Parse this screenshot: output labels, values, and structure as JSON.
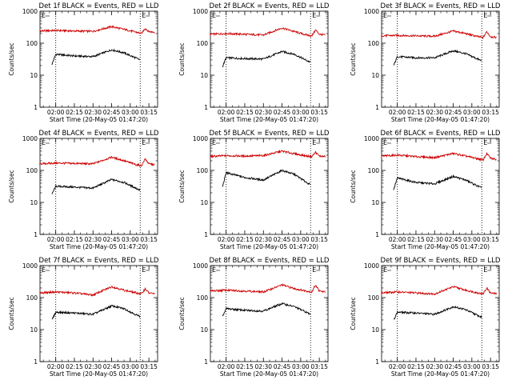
{
  "figure": {
    "background": "#ffffff",
    "axis_color": "#000000",
    "events_color": "#000000",
    "lld_color": "#cc0000"
  },
  "chart_data": [
    {
      "type": "line",
      "title": "Det 1f BLACK = Events, RED = LLD",
      "ylabel": "Counts/sec",
      "xlabel": "Start Time (20-May-05 01:47:20)",
      "yscale": "log",
      "ylim": [
        1,
        1000
      ],
      "yticks": [
        "1",
        "10",
        "100",
        "1000"
      ],
      "xlim": [
        "01:47:20",
        "03:22:00"
      ],
      "xticks": [
        "02:00",
        "02:15",
        "02:30",
        "02:45",
        "03:00",
        "03:15"
      ],
      "vlines": [
        "02:00",
        "03:08"
      ],
      "vline_style": "dotted",
      "marker_labels": [
        "E",
        "E"
      ],
      "series": [
        {
          "name": "Events",
          "color": "#000000",
          "x": [
            "01:57",
            "02:00",
            "02:15",
            "02:30",
            "02:45",
            "02:55",
            "03:08"
          ],
          "y": [
            22,
            45,
            40,
            38,
            62,
            50,
            30
          ]
        },
        {
          "name": "LLD",
          "color": "#cc0000",
          "x": [
            "01:47",
            "02:00",
            "02:15",
            "02:30",
            "02:45",
            "02:55",
            "03:05",
            "03:09",
            "03:12",
            "03:15",
            "03:20"
          ],
          "y": [
            240,
            250,
            240,
            235,
            330,
            270,
            220,
            200,
            290,
            230,
            220
          ]
        }
      ]
    },
    {
      "type": "line",
      "title": "Det 2f BLACK = Events, RED = LLD",
      "ylabel": "Counts/sec",
      "xlabel": "Start Time (20-May-05 01:47:20)",
      "yscale": "log",
      "ylim": [
        1,
        1000
      ],
      "yticks": [
        "1",
        "10",
        "100",
        "1000"
      ],
      "xlim": [
        "01:47:20",
        "03:22:00"
      ],
      "xticks": [
        "02:00",
        "02:15",
        "02:30",
        "02:45",
        "03:00",
        "03:15"
      ],
      "vlines": [
        "02:00",
        "03:08"
      ],
      "vline_style": "dotted",
      "marker_labels": [
        "E",
        "E"
      ],
      "series": [
        {
          "name": "Events",
          "color": "#000000",
          "x": [
            "01:57",
            "02:00",
            "02:15",
            "02:30",
            "02:45",
            "02:55",
            "03:08"
          ],
          "y": [
            18,
            35,
            33,
            32,
            55,
            45,
            25
          ]
        },
        {
          "name": "LLD",
          "color": "#cc0000",
          "x": [
            "01:47",
            "02:00",
            "02:15",
            "02:30",
            "02:45",
            "02:55",
            "03:05",
            "03:09",
            "03:12",
            "03:15",
            "03:20"
          ],
          "y": [
            190,
            200,
            190,
            180,
            300,
            230,
            180,
            170,
            260,
            190,
            180
          ]
        }
      ]
    },
    {
      "type": "line",
      "title": "Det 3f BLACK = Events, RED = LLD",
      "ylabel": "Counts/sec",
      "xlabel": "Start Time (20-May-05 01:47:20)",
      "yscale": "log",
      "ylim": [
        1,
        1000
      ],
      "yticks": [
        "1",
        "10",
        "100",
        "1000"
      ],
      "xlim": [
        "01:47:20",
        "03:22:00"
      ],
      "xticks": [
        "02:00",
        "02:15",
        "02:30",
        "02:45",
        "03:00",
        "03:15"
      ],
      "vlines": [
        "02:00",
        "03:08"
      ],
      "vline_style": "dotted",
      "marker_labels": [
        "E",
        "E"
      ],
      "series": [
        {
          "name": "Events",
          "color": "#000000",
          "x": [
            "01:57",
            "02:00",
            "02:15",
            "02:30",
            "02:45",
            "02:55",
            "03:08"
          ],
          "y": [
            20,
            38,
            35,
            35,
            58,
            47,
            28
          ]
        },
        {
          "name": "LLD",
          "color": "#cc0000",
          "x": [
            "01:47",
            "02:00",
            "02:15",
            "02:30",
            "02:45",
            "02:55",
            "03:05",
            "03:09",
            "03:12",
            "03:15",
            "03:20"
          ],
          "y": [
            170,
            175,
            170,
            165,
            240,
            200,
            160,
            150,
            230,
            160,
            150
          ]
        }
      ]
    },
    {
      "type": "line",
      "title": "Det 4f BLACK = Events, RED = LLD",
      "ylabel": "Counts/sec",
      "xlabel": "Start Time (20-May-05 01:47:20)",
      "yscale": "log",
      "ylim": [
        1,
        1000
      ],
      "yticks": [
        "1",
        "10",
        "100",
        "1000"
      ],
      "xlim": [
        "01:47:20",
        "03:22:00"
      ],
      "xticks": [
        "02:00",
        "02:15",
        "02:30",
        "02:45",
        "03:00",
        "03:15"
      ],
      "vlines": [
        "02:00",
        "03:08"
      ],
      "vline_style": "dotted",
      "marker_labels": [
        "E",
        "E"
      ],
      "series": [
        {
          "name": "Events",
          "color": "#000000",
          "x": [
            "01:57",
            "02:00",
            "02:15",
            "02:30",
            "02:45",
            "02:55",
            "03:08"
          ],
          "y": [
            18,
            32,
            30,
            28,
            52,
            42,
            24
          ]
        },
        {
          "name": "LLD",
          "color": "#cc0000",
          "x": [
            "01:47",
            "02:00",
            "02:15",
            "02:30",
            "02:45",
            "02:55",
            "03:05",
            "03:09",
            "03:12",
            "03:15",
            "03:20"
          ],
          "y": [
            160,
            170,
            165,
            160,
            260,
            200,
            150,
            140,
            230,
            160,
            150
          ]
        }
      ]
    },
    {
      "type": "line",
      "title": "Det 5f BLACK = Events, RED = LLD",
      "ylabel": "Counts/sec",
      "xlabel": "Start Time (20-May-05 01:47:20)",
      "yscale": "log",
      "ylim": [
        1,
        1000
      ],
      "yticks": [
        "1",
        "10",
        "100",
        "1000"
      ],
      "xlim": [
        "01:47:20",
        "03:22:00"
      ],
      "xticks": [
        "02:00",
        "02:15",
        "02:30",
        "02:45",
        "03:00",
        "03:15"
      ],
      "vlines": [
        "02:00",
        "03:08"
      ],
      "vline_style": "dotted",
      "marker_labels": [
        "E",
        "E"
      ],
      "series": [
        {
          "name": "Events",
          "color": "#000000",
          "x": [
            "01:57",
            "02:00",
            "02:15",
            "02:30",
            "02:45",
            "02:55",
            "03:08"
          ],
          "y": [
            30,
            85,
            60,
            50,
            100,
            75,
            35
          ]
        },
        {
          "name": "LLD",
          "color": "#cc0000",
          "x": [
            "01:47",
            "02:00",
            "02:15",
            "02:30",
            "02:45",
            "02:55",
            "03:05",
            "03:09",
            "03:12",
            "03:15",
            "03:20"
          ],
          "y": [
            270,
            290,
            280,
            290,
            400,
            330,
            280,
            270,
            370,
            280,
            270
          ]
        }
      ]
    },
    {
      "type": "line",
      "title": "Det 6f BLACK = Events, RED = LLD",
      "ylabel": "Counts/sec",
      "xlabel": "Start Time (20-May-05 01:47:20)",
      "yscale": "log",
      "ylim": [
        1,
        1000
      ],
      "yticks": [
        "1",
        "10",
        "100",
        "1000"
      ],
      "xlim": [
        "01:47:20",
        "03:22:00"
      ],
      "xticks": [
        "02:00",
        "02:15",
        "02:30",
        "02:45",
        "03:00",
        "03:15"
      ],
      "vlines": [
        "02:00",
        "03:08"
      ],
      "vline_style": "dotted",
      "marker_labels": [
        "E",
        "E"
      ],
      "series": [
        {
          "name": "Events",
          "color": "#000000",
          "x": [
            "01:57",
            "02:00",
            "02:15",
            "02:30",
            "02:45",
            "02:55",
            "03:08"
          ],
          "y": [
            25,
            58,
            42,
            38,
            65,
            50,
            28
          ]
        },
        {
          "name": "LLD",
          "color": "#cc0000",
          "x": [
            "01:47",
            "02:00",
            "02:15",
            "02:30",
            "02:45",
            "02:55",
            "03:05",
            "03:09",
            "03:12",
            "03:15",
            "03:20"
          ],
          "y": [
            280,
            300,
            270,
            250,
            340,
            280,
            230,
            210,
            340,
            240,
            220
          ]
        }
      ]
    },
    {
      "type": "line",
      "title": "Det 7f BLACK = Events, RED = LLD",
      "ylabel": "Counts/sec",
      "xlabel": "Start Time (20-May-05 01:47:20)",
      "yscale": "log",
      "ylim": [
        1,
        1000
      ],
      "yticks": [
        "1",
        "10",
        "100",
        "1000"
      ],
      "xlim": [
        "01:47:20",
        "03:22:00"
      ],
      "xticks": [
        "02:00",
        "02:15",
        "02:30",
        "02:45",
        "03:00",
        "03:15"
      ],
      "vlines": [
        "02:00",
        "03:08"
      ],
      "vline_style": "dotted",
      "marker_labels": [
        "E",
        "E"
      ],
      "series": [
        {
          "name": "Events",
          "color": "#000000",
          "x": [
            "01:57",
            "02:00",
            "02:15",
            "02:30",
            "02:45",
            "02:55",
            "03:08"
          ],
          "y": [
            20,
            35,
            33,
            30,
            55,
            45,
            25
          ]
        },
        {
          "name": "LLD",
          "color": "#cc0000",
          "x": [
            "01:47",
            "02:00",
            "02:15",
            "02:30",
            "02:45",
            "02:55",
            "03:05",
            "03:09",
            "03:12",
            "03:15",
            "03:20"
          ],
          "y": [
            140,
            150,
            140,
            120,
            220,
            170,
            140,
            130,
            190,
            140,
            130
          ]
        }
      ]
    },
    {
      "type": "line",
      "title": "Det 8f BLACK = Events, RED = LLD",
      "ylabel": "Counts/sec",
      "xlabel": "Start Time (20-May-05 01:47:20)",
      "yscale": "log",
      "ylim": [
        1,
        1000
      ],
      "yticks": [
        "1",
        "10",
        "100",
        "1000"
      ],
      "xlim": [
        "01:47:20",
        "03:22:00"
      ],
      "xticks": [
        "02:00",
        "02:15",
        "02:30",
        "02:45",
        "03:00",
        "03:15"
      ],
      "vlines": [
        "02:00",
        "03:08"
      ],
      "vline_style": "dotted",
      "marker_labels": [
        "E",
        "E"
      ],
      "series": [
        {
          "name": "Events",
          "color": "#000000",
          "x": [
            "01:57",
            "02:00",
            "02:15",
            "02:30",
            "02:45",
            "02:55",
            "03:08"
          ],
          "y": [
            25,
            45,
            40,
            38,
            65,
            52,
            30
          ]
        },
        {
          "name": "LLD",
          "color": "#cc0000",
          "x": [
            "01:47",
            "02:00",
            "02:15",
            "02:30",
            "02:45",
            "02:55",
            "03:05",
            "03:09",
            "03:12",
            "03:15",
            "03:20"
          ],
          "y": [
            160,
            170,
            160,
            150,
            250,
            190,
            160,
            150,
            250,
            160,
            150
          ]
        }
      ]
    },
    {
      "type": "line",
      "title": "Det 9f BLACK = Events, RED = LLD",
      "ylabel": "Counts/sec",
      "xlabel": "Start Time (20-May-05 01:47:20)",
      "yscale": "log",
      "ylim": [
        1,
        1000
      ],
      "yticks": [
        "1",
        "10",
        "100",
        "1000"
      ],
      "xlim": [
        "01:47:20",
        "03:22:00"
      ],
      "xticks": [
        "02:00",
        "02:15",
        "02:30",
        "02:45",
        "03:00",
        "03:15"
      ],
      "vlines": [
        "02:00",
        "03:08"
      ],
      "vline_style": "dotted",
      "marker_labels": [
        "E",
        "E"
      ],
      "series": [
        {
          "name": "Events",
          "color": "#000000",
          "x": [
            "01:57",
            "02:00",
            "02:15",
            "02:30",
            "02:45",
            "02:55",
            "03:08"
          ],
          "y": [
            20,
            35,
            33,
            30,
            52,
            42,
            24
          ]
        },
        {
          "name": "LLD",
          "color": "#cc0000",
          "x": [
            "01:47",
            "02:00",
            "02:15",
            "02:30",
            "02:45",
            "02:55",
            "03:05",
            "03:09",
            "03:12",
            "03:15",
            "03:20"
          ],
          "y": [
            140,
            150,
            140,
            130,
            220,
            170,
            140,
            130,
            200,
            140,
            130
          ]
        }
      ]
    }
  ]
}
